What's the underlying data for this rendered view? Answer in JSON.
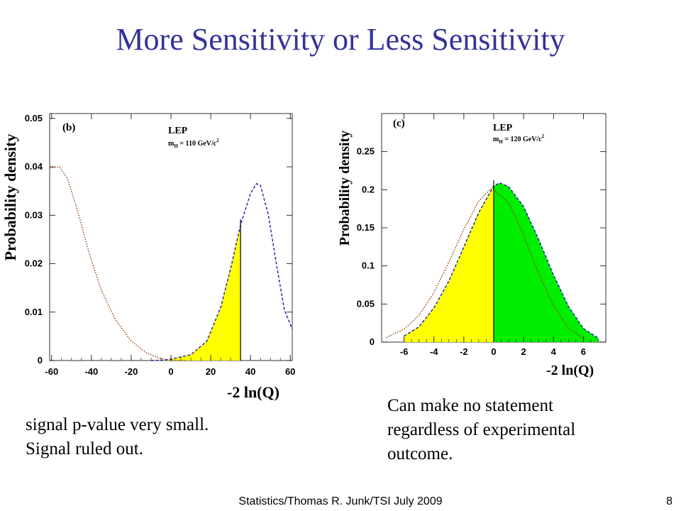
{
  "slide": {
    "title": "More Sensitivity or Less Sensitivity",
    "caption_left": [
      "signal p-value very small.",
      "Signal ruled out."
    ],
    "caption_right": [
      "Can make no statement",
      "regardless of experimental",
      "outcome."
    ],
    "footer": "Statistics/Thomas R. Junk/TSI July 2009",
    "page_number": "8"
  },
  "chart_data": [
    {
      "type": "line",
      "panel": "(b)",
      "experiment": "LEP",
      "mass_label": "m_H = 110 GeV/c^2",
      "mass_parts": {
        "m": "m",
        "sub": "H",
        "val": " = 110 GeV/c",
        "sup": "2"
      },
      "xlabel": "-2 ln(Q)",
      "ylabel": "Probability density",
      "xlim": [
        -61,
        61
      ],
      "ylim": [
        0,
        0.051
      ],
      "xticks": [
        -60,
        -40,
        -20,
        0,
        20,
        40,
        60
      ],
      "xtick_labels": [
        "-60",
        "-40",
        "-20",
        "0",
        "20",
        "40",
        "60"
      ],
      "yticks": [
        0,
        0.01,
        0.02,
        0.03,
        0.04,
        0.05
      ],
      "ytick_labels": [
        "0",
        "0.01",
        "0.02",
        "0.03",
        "0.04",
        "0.05"
      ],
      "observed": 35,
      "series": [
        {
          "color": "#8b3a0a",
          "style": "dotted",
          "x": [
            -61,
            -56,
            -52,
            -47,
            -41,
            -35,
            -28,
            -20,
            -12,
            -5,
            0,
            8
          ],
          "y": [
            0.0398,
            0.04,
            0.0375,
            0.031,
            0.022,
            0.0145,
            0.0085,
            0.004,
            0.0015,
            0.0004,
            0.0001,
            0
          ]
        },
        {
          "color": "#1c1cb0",
          "style": "dashed",
          "x": [
            -10,
            -3,
            0,
            10,
            18,
            25,
            30,
            35,
            40,
            43,
            45,
            49,
            53,
            57,
            61
          ],
          "y": [
            0,
            0.0001,
            0.0003,
            0.0012,
            0.004,
            0.011,
            0.019,
            0.028,
            0.0345,
            0.0365,
            0.0362,
            0.03,
            0.02,
            0.0105,
            0.0065
          ]
        }
      ],
      "shaded": [
        {
          "color": "#ffff00",
          "from": -10,
          "to": 35,
          "under": "dashed"
        }
      ]
    },
    {
      "type": "line",
      "panel": "(c)",
      "experiment": "LEP",
      "mass_label": "m_H = 120 GeV/c^2",
      "mass_parts": {
        "m": "m",
        "sub": "H",
        "val": " = 120 GeV/c",
        "sup": "2"
      },
      "xlabel": "-2 ln(Q)",
      "ylabel": "Probability density",
      "xlim": [
        -7.5,
        7.5
      ],
      "ylim": [
        0,
        0.3
      ],
      "xticks": [
        -6,
        -4,
        -2,
        0,
        2,
        4,
        6
      ],
      "xtick_labels": [
        "-6",
        "-4",
        "-2",
        "0",
        "2",
        "4",
        "6"
      ],
      "yticks": [
        0,
        0.05,
        0.1,
        0.15,
        0.2,
        0.25
      ],
      "ytick_labels": [
        "0",
        "0.05",
        "0.1",
        "0.15",
        "0.2",
        "0.25"
      ],
      "observed": 0,
      "series": [
        {
          "color": "#8b3a0a",
          "style": "dotted",
          "x": [
            -7.2,
            -6,
            -5,
            -4,
            -3,
            -2,
            -1,
            -0.2,
            0,
            1,
            2,
            3,
            4,
            5,
            6
          ],
          "y": [
            0.006,
            0.017,
            0.035,
            0.065,
            0.105,
            0.148,
            0.185,
            0.201,
            0.2,
            0.183,
            0.14,
            0.09,
            0.048,
            0.018,
            0.005
          ]
        },
        {
          "color": "#1c1cb0",
          "style": "dashed",
          "x": [
            -6,
            -5,
            -4,
            -3,
            -2,
            -1,
            0,
            0.4,
            1,
            2,
            3,
            4,
            5,
            6,
            7
          ],
          "y": [
            0.008,
            0.02,
            0.045,
            0.08,
            0.125,
            0.17,
            0.205,
            0.209,
            0.204,
            0.178,
            0.135,
            0.088,
            0.047,
            0.018,
            0.005
          ]
        }
      ],
      "shaded": [
        {
          "color": "#ffff00",
          "from": -6,
          "to": 0,
          "under": "dashed"
        },
        {
          "color": "#00ee00",
          "from": 0,
          "to": 7,
          "under": "dashed"
        }
      ]
    }
  ]
}
